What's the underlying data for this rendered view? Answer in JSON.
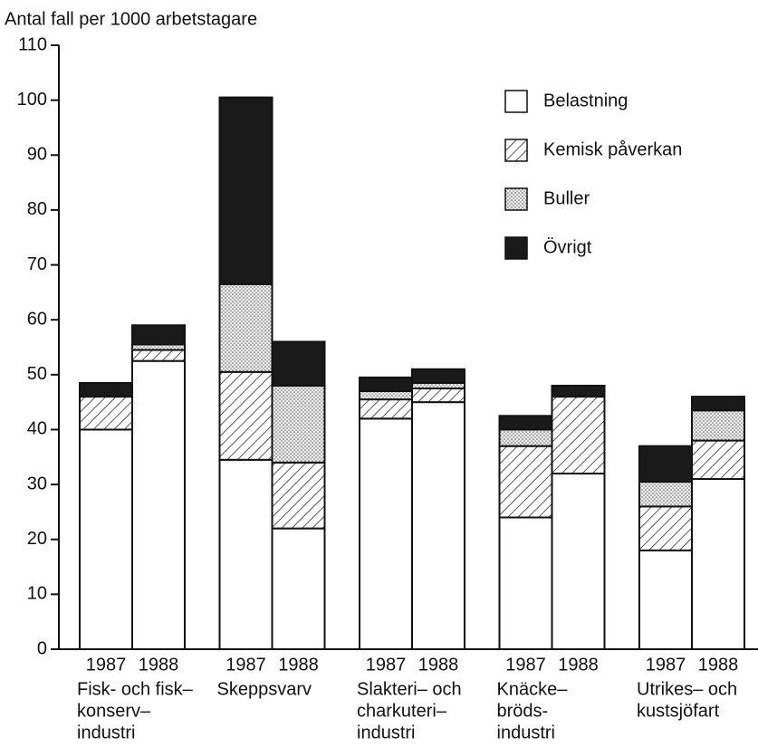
{
  "chart_data": {
    "type": "stacked-bar",
    "y_label": "Antal fall per 1000 arbetstagare",
    "categories": [
      "1987",
      "1988",
      "1987",
      "1988",
      "1987",
      "1988",
      "1987",
      "1988",
      "1987",
      "1988"
    ],
    "groups": [
      [
        "Fisk- och fisk–",
        "konserv–",
        "industri"
      ],
      [
        "Skeppsvarv"
      ],
      [
        "Slakteri– och",
        "charkuteri–",
        "industri"
      ],
      [
        "Knäcke–",
        "bröds-",
        "industri"
      ],
      [
        "Utrikes– och",
        "kustsjöfart"
      ]
    ],
    "series": [
      {
        "name": "Belastning",
        "color": "#ffffff",
        "pattern": "none",
        "values": [
          40,
          52.5,
          34.5,
          22,
          42,
          45,
          24,
          32,
          18,
          31
        ]
      },
      {
        "name": "Kemisk påverkan",
        "color": "#ffffff",
        "pattern": "hatch",
        "values": [
          6,
          2,
          16,
          12,
          3.5,
          2.5,
          13,
          14,
          8,
          7
        ]
      },
      {
        "name": "Buller",
        "color": "#e0e0e0",
        "pattern": "dots",
        "values": [
          0,
          1,
          16,
          14,
          1.5,
          1,
          3,
          0,
          4.5,
          5.5
        ]
      },
      {
        "name": "Övrigt",
        "color": "#1a1a1a",
        "pattern": "none",
        "values": [
          2.5,
          3.5,
          34,
          8,
          2.5,
          2.5,
          2.5,
          2,
          6.5,
          2.5
        ]
      }
    ],
    "ylim": [
      0,
      110
    ],
    "yticks": [
      0,
      10,
      20,
      30,
      40,
      50,
      60,
      70,
      80,
      90,
      100,
      110
    ]
  }
}
